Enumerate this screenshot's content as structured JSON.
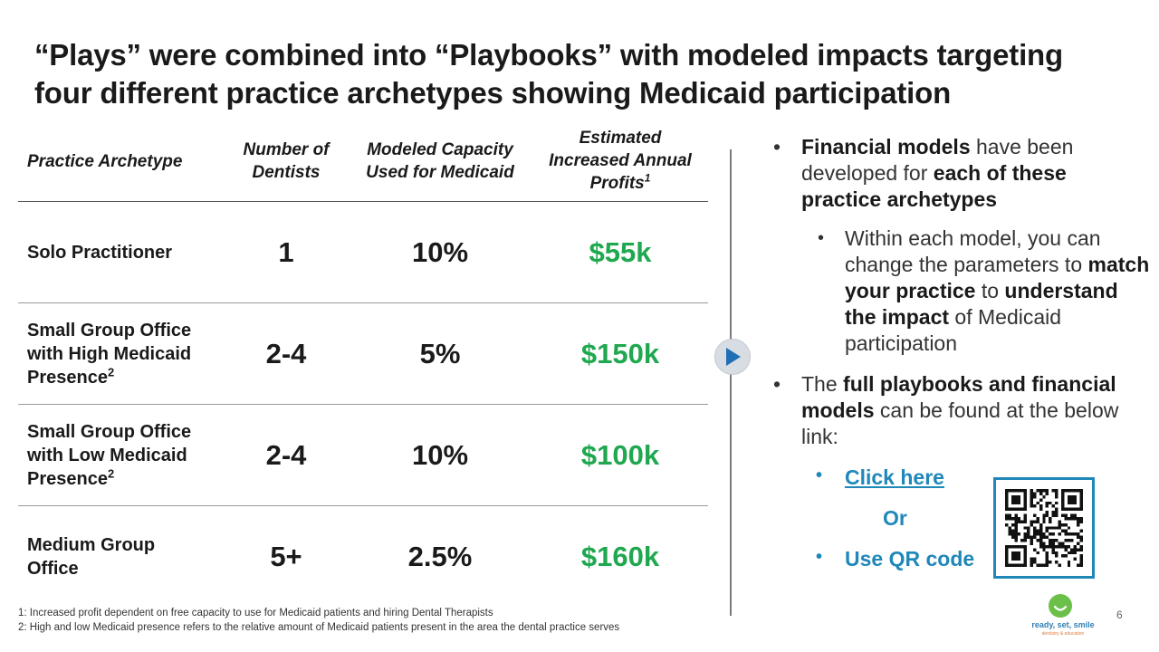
{
  "title": {
    "line1": "“Plays” were combined into “Playbooks” with modeled impacts targeting",
    "line2": "four different practice archetypes showing Medicaid participation"
  },
  "table": {
    "headers": {
      "archetype": "Practice Archetype",
      "dentists_1": "Number of",
      "dentists_2": "Dentists",
      "capacity_1": "Modeled Capacity",
      "capacity_2": "Used for Medicaid",
      "profits_1": "Estimated",
      "profits_2": "Increased Annual",
      "profits_3": "Profits",
      "profits_sup": "1"
    },
    "rows": [
      {
        "l1": "Solo Practitioner",
        "l2": "",
        "l3": "",
        "sup": "",
        "dentists": "1",
        "capacity": "10%",
        "profits": "$55k"
      },
      {
        "l1": "Small Group Office",
        "l2": "with High Medicaid",
        "l3": "Presence",
        "sup": "2",
        "dentists": "2-4",
        "capacity": "5%",
        "profits": "$150k"
      },
      {
        "l1": "Small Group Office",
        "l2": "with Low Medicaid",
        "l3": "Presence",
        "sup": "2",
        "dentists": "2-4",
        "capacity": "10%",
        "profits": "$100k"
      },
      {
        "l1": "Medium Group",
        "l2": "Office",
        "l3": "",
        "sup": "",
        "dentists": "5+",
        "capacity": "2.5%",
        "profits": "$160k"
      }
    ]
  },
  "right": {
    "b1_bold1": "Financial models",
    "b1_t1": " have been developed for ",
    "b1_bold2": "each of these practice archetypes",
    "sub_t1": "Within each model, you can change the parameters to ",
    "sub_bold1": "match your practice",
    "sub_t2": " to ",
    "sub_bold2": "understand the impact",
    "sub_t3": " of Medicaid participation",
    "b2_t1": "The ",
    "b2_bold": "full playbooks and financial models",
    "b2_t2": " can be found at the below link:",
    "link_label": "Click here",
    "or_label": "Or",
    "qr_label": "Use QR code"
  },
  "footnotes": {
    "f1": "1: Increased profit dependent on free capacity to use for Medicaid patients and hiring Dental Therapists",
    "f2": "2: High and low Medicaid presence refers to the relative amount of Medicaid patients present in the area the dental practice serves"
  },
  "page_number": "6",
  "logo": {
    "brand": "ready, set, smile",
    "tag": "dentistry & education"
  },
  "colors": {
    "profit_green": "#1fa84f",
    "link_blue": "#1f88b9",
    "logo_green": "#6cc04a"
  }
}
